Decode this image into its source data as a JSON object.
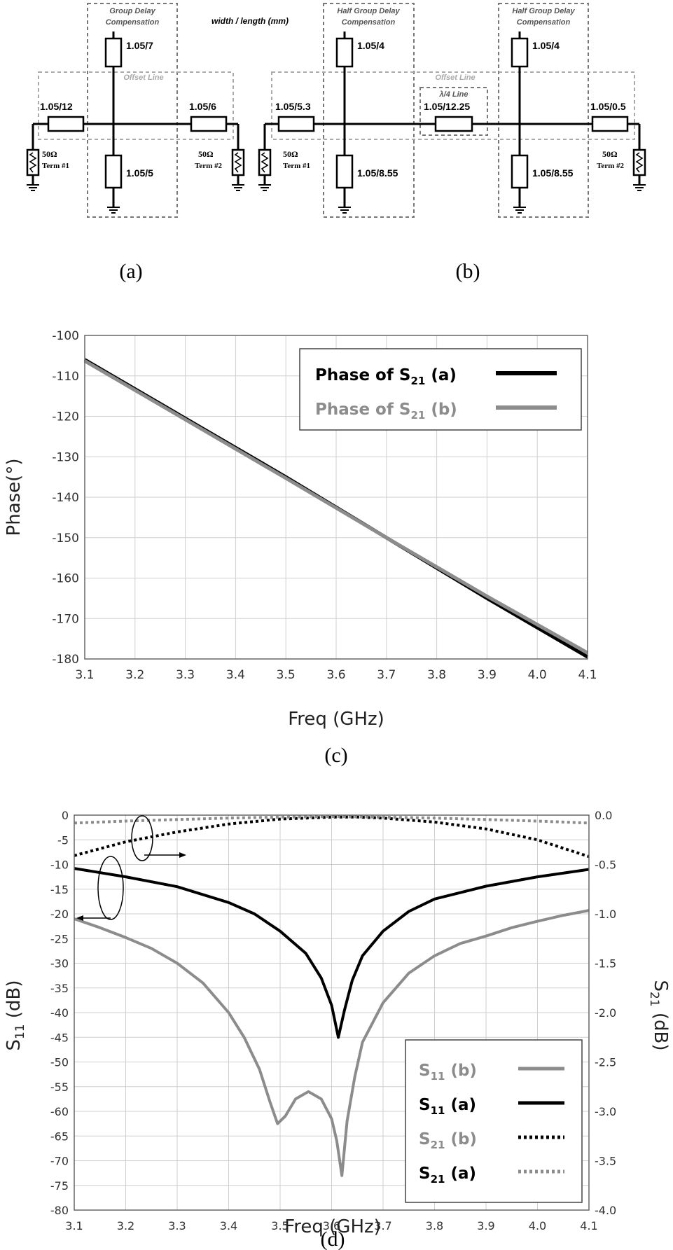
{
  "schematic_a": {
    "units_note": "width / length (mm)",
    "group_delay_label": [
      "Group Delay",
      "Compensation"
    ],
    "offset_label": "Offset Line",
    "stub_top": "1.05/7",
    "stub_bottom": "1.05/5",
    "line_left": "1.05/12",
    "line_right": "1.05/6",
    "term1": [
      "50Ω",
      "Term #1"
    ],
    "term2": [
      "50Ω",
      "Term #2"
    ],
    "caption": "(a)"
  },
  "schematic_b": {
    "half_label": [
      "Half Group Delay",
      "Compensation"
    ],
    "offset_label": "Offset Line",
    "qw_label": "λ/4 Line",
    "stub1_top": "1.05/4",
    "stub1_bottom": "1.05/8.55",
    "stub2_top": "1.05/4",
    "stub2_bottom": "1.05/8.55",
    "line_left": "1.05/5.3",
    "line_mid": "1.05/12.25",
    "line_right": "1.05/0.5",
    "term1": [
      "50Ω",
      "Term #1"
    ],
    "term2": [
      "50Ω",
      "Term #2"
    ],
    "caption": "(b)"
  },
  "captions": {
    "c": "(c)",
    "d": "(d)"
  },
  "chart_data": [
    {
      "type": "line",
      "ylabel": "Phase(°)",
      "xlabel": "Freq (GHz)",
      "xlim": [
        3.1,
        4.1
      ],
      "ylim": [
        -180,
        -100
      ],
      "xticks": [
        "3.1",
        "3.2",
        "3.3",
        "3.4",
        "3.5",
        "3.6",
        "3.7",
        "3.8",
        "3.9",
        "4.0",
        "4.1"
      ],
      "yticks": [
        "-100",
        "-110",
        "-120",
        "-130",
        "-140",
        "-150",
        "-160",
        "-170",
        "-180"
      ],
      "grid": true,
      "legend_position": "top-right",
      "series": [
        {
          "name": "Phase of S21 (a)",
          "color": "#000000",
          "x": [
            3.1,
            3.3,
            3.5,
            3.7,
            3.9,
            4.1
          ],
          "y": [
            -106,
            -120.5,
            -135,
            -150,
            -165,
            -179.5
          ]
        },
        {
          "name": "Phase of S21 (b)",
          "color": "#8c8c8c",
          "x": [
            3.1,
            3.3,
            3.5,
            3.7,
            3.9,
            4.1
          ],
          "y": [
            -106.3,
            -120.8,
            -135.3,
            -150,
            -164.5,
            -178.5
          ]
        }
      ]
    },
    {
      "type": "line",
      "xlabel": "Freq (GHz)",
      "ylabel_left": "S11 (dB)",
      "ylabel_right": "S21 (dB)",
      "xlim": [
        3.1,
        4.1
      ],
      "ylim_left": [
        -80,
        0
      ],
      "ylim_right": [
        -4.0,
        0.0
      ],
      "xticks": [
        "3.1",
        "3.2",
        "3.3",
        "3.4",
        "3.5",
        "3.6",
        "3.7",
        "3.8",
        "3.9",
        "4.0",
        "4.1"
      ],
      "yticks_left": [
        "0",
        "-5",
        "-10",
        "-15",
        "-20",
        "-25",
        "-30",
        "-35",
        "-40",
        "-45",
        "-50",
        "-55",
        "-60",
        "-65",
        "-70",
        "-75",
        "-80"
      ],
      "yticks_right": [
        "0.0",
        "-0.5",
        "-1.0",
        "-1.5",
        "-2.0",
        "-2.5",
        "-3.0",
        "-3.5",
        "-4.0"
      ],
      "grid": true,
      "legend_position": "bottom-right",
      "series": [
        {
          "name": "S11 (b)",
          "axis": "left",
          "style": "solid",
          "color": "#8c8c8c",
          "x": [
            3.1,
            3.15,
            3.2,
            3.25,
            3.3,
            3.35,
            3.4,
            3.43,
            3.46,
            3.48,
            3.495,
            3.51,
            3.53,
            3.555,
            3.58,
            3.6,
            3.61,
            3.62,
            3.63,
            3.645,
            3.66,
            3.7,
            3.75,
            3.8,
            3.85,
            3.9,
            3.95,
            4.0,
            4.05,
            4.1
          ],
          "y": [
            -21,
            -22.8,
            -24.8,
            -27,
            -30,
            -34,
            -40,
            -45,
            -51.5,
            -58,
            -62.5,
            -61,
            -57.5,
            -56,
            -57.5,
            -61.5,
            -66,
            -73,
            -62,
            -53,
            -46,
            -38,
            -32,
            -28.5,
            -26,
            -24.5,
            -22.8,
            -21.5,
            -20.3,
            -19.3
          ]
        },
        {
          "name": "S11 (a)",
          "axis": "left",
          "style": "solid",
          "color": "#000000",
          "x": [
            3.1,
            3.2,
            3.3,
            3.4,
            3.45,
            3.5,
            3.55,
            3.58,
            3.6,
            3.613,
            3.625,
            3.64,
            3.66,
            3.7,
            3.75,
            3.8,
            3.9,
            4.0,
            4.1
          ],
          "y": [
            -10.8,
            -12.5,
            -14.5,
            -17.7,
            -20,
            -23.5,
            -28,
            -33,
            -38.5,
            -45,
            -39.5,
            -33.5,
            -28.5,
            -23.5,
            -19.5,
            -17,
            -14.4,
            -12.5,
            -11
          ]
        },
        {
          "name": "S21 (b)",
          "axis": "right",
          "style": "dotted",
          "color": "#000000",
          "x": [
            3.1,
            3.2,
            3.3,
            3.4,
            3.5,
            3.6,
            3.65,
            3.7,
            3.8,
            3.9,
            4.0,
            4.1
          ],
          "y": [
            -0.41,
            -0.27,
            -0.17,
            -0.09,
            -0.04,
            -0.02,
            -0.02,
            -0.03,
            -0.07,
            -0.14,
            -0.25,
            -0.42
          ]
        },
        {
          "name": "S21 (a)",
          "axis": "right",
          "style": "dotted",
          "color": "#8c8c8c",
          "x": [
            3.1,
            3.2,
            3.3,
            3.4,
            3.5,
            3.6,
            3.7,
            3.8,
            3.9,
            4.0,
            4.1
          ],
          "y": [
            -0.08,
            -0.06,
            -0.045,
            -0.03,
            -0.02,
            -0.015,
            -0.02,
            -0.03,
            -0.045,
            -0.06,
            -0.08
          ]
        }
      ]
    }
  ]
}
